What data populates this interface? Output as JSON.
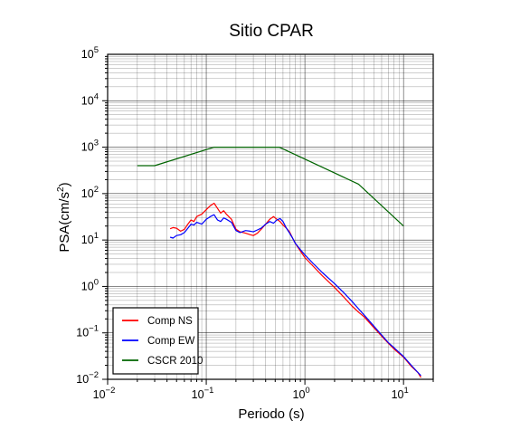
{
  "chart_data": {
    "type": "line",
    "title": "Sitio CPAR",
    "xlabel": "Periodo (s)",
    "ylabel": "PSA(cm/s2)",
    "xscale": "log",
    "yscale": "log",
    "xlim": [
      0.01,
      20
    ],
    "ylim": [
      0.01,
      100000
    ],
    "x_ticks": [
      {
        "label": "10",
        "exp": "−2"
      },
      {
        "label": "10",
        "exp": "−1"
      },
      {
        "label": "10",
        "exp": "0"
      },
      {
        "label": "10",
        "exp": "1"
      }
    ],
    "y_ticks": [
      {
        "label": "10",
        "exp": "−2"
      },
      {
        "label": "10",
        "exp": "−1"
      },
      {
        "label": "10",
        "exp": "0"
      },
      {
        "label": "10",
        "exp": "1"
      },
      {
        "label": "10",
        "exp": "2"
      },
      {
        "label": "10",
        "exp": "3"
      },
      {
        "label": "10",
        "exp": "4"
      },
      {
        "label": "10",
        "exp": "5"
      }
    ],
    "grid": true,
    "legend_position": "bottom-left",
    "series": [
      {
        "name": "Comp NS",
        "color": "#ff0000",
        "points": [
          [
            0.043,
            17.5
          ],
          [
            0.046,
            18.5
          ],
          [
            0.05,
            18
          ],
          [
            0.055,
            15.5
          ],
          [
            0.06,
            17
          ],
          [
            0.065,
            22
          ],
          [
            0.07,
            27
          ],
          [
            0.075,
            25
          ],
          [
            0.08,
            32
          ],
          [
            0.09,
            36
          ],
          [
            0.1,
            45
          ],
          [
            0.11,
            55
          ],
          [
            0.12,
            62
          ],
          [
            0.13,
            48
          ],
          [
            0.14,
            38
          ],
          [
            0.15,
            43
          ],
          [
            0.16,
            36
          ],
          [
            0.18,
            28
          ],
          [
            0.2,
            17
          ],
          [
            0.22,
            15
          ],
          [
            0.25,
            14
          ],
          [
            0.28,
            13
          ],
          [
            0.3,
            12.5
          ],
          [
            0.33,
            14
          ],
          [
            0.36,
            17
          ],
          [
            0.4,
            22
          ],
          [
            0.44,
            28
          ],
          [
            0.48,
            32
          ],
          [
            0.52,
            28
          ],
          [
            0.56,
            25
          ],
          [
            0.6,
            21
          ],
          [
            0.65,
            18
          ],
          [
            0.7,
            15
          ],
          [
            0.75,
            11
          ],
          [
            0.8,
            8.5
          ],
          [
            0.9,
            5.8
          ],
          [
            1.0,
            4.2
          ],
          [
            1.2,
            2.8
          ],
          [
            1.5,
            1.7
          ],
          [
            2.0,
            0.95
          ],
          [
            2.5,
            0.58
          ],
          [
            3.0,
            0.38
          ],
          [
            3.5,
            0.28
          ],
          [
            4.0,
            0.22
          ],
          [
            5.0,
            0.13
          ],
          [
            6.0,
            0.085
          ],
          [
            7.0,
            0.06
          ],
          [
            8.0,
            0.045
          ],
          [
            10.0,
            0.03
          ],
          [
            12.0,
            0.019
          ],
          [
            14.0,
            0.014
          ],
          [
            15.0,
            0.011
          ]
        ]
      },
      {
        "name": "Comp EW",
        "color": "#0000ff",
        "points": [
          [
            0.043,
            11.5
          ],
          [
            0.046,
            11
          ],
          [
            0.05,
            12.5
          ],
          [
            0.055,
            13
          ],
          [
            0.06,
            14.5
          ],
          [
            0.065,
            18
          ],
          [
            0.07,
            22
          ],
          [
            0.075,
            21
          ],
          [
            0.08,
            24
          ],
          [
            0.09,
            22
          ],
          [
            0.1,
            28
          ],
          [
            0.11,
            32
          ],
          [
            0.12,
            35
          ],
          [
            0.13,
            27
          ],
          [
            0.14,
            25
          ],
          [
            0.15,
            30
          ],
          [
            0.16,
            28
          ],
          [
            0.18,
            24
          ],
          [
            0.2,
            16
          ],
          [
            0.22,
            14.5
          ],
          [
            0.25,
            16
          ],
          [
            0.28,
            15.5
          ],
          [
            0.3,
            15
          ],
          [
            0.33,
            16.5
          ],
          [
            0.36,
            18
          ],
          [
            0.4,
            22
          ],
          [
            0.44,
            25
          ],
          [
            0.48,
            23
          ],
          [
            0.52,
            27
          ],
          [
            0.56,
            29
          ],
          [
            0.6,
            25
          ],
          [
            0.65,
            18
          ],
          [
            0.7,
            14
          ],
          [
            0.75,
            11
          ],
          [
            0.8,
            8.5
          ],
          [
            0.9,
            6.2
          ],
          [
            1.0,
            4.8
          ],
          [
            1.2,
            3.2
          ],
          [
            1.5,
            2.0
          ],
          [
            2.0,
            1.15
          ],
          [
            2.5,
            0.72
          ],
          [
            3.0,
            0.48
          ],
          [
            3.5,
            0.33
          ],
          [
            4.0,
            0.24
          ],
          [
            5.0,
            0.14
          ],
          [
            6.0,
            0.09
          ],
          [
            7.0,
            0.062
          ],
          [
            8.0,
            0.048
          ],
          [
            10.0,
            0.031
          ],
          [
            12.0,
            0.02
          ],
          [
            14.0,
            0.014
          ],
          [
            15.0,
            0.012
          ]
        ]
      },
      {
        "name": "CSCR 2010",
        "color": "#006400",
        "points": [
          [
            0.02,
            400
          ],
          [
            0.03,
            400
          ],
          [
            0.12,
            1000
          ],
          [
            0.55,
            1000
          ],
          [
            3.5,
            160
          ],
          [
            10.0,
            20
          ]
        ]
      }
    ]
  }
}
